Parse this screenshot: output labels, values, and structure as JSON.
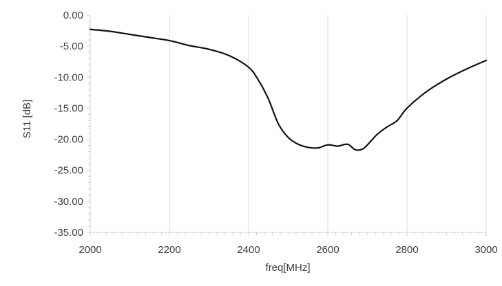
{
  "chart_data": {
    "type": "line",
    "title": "",
    "xlabel": "freq[MHz]",
    "ylabel": "S11 [dB]",
    "xlim": [
      2000,
      3000
    ],
    "ylim": [
      -35,
      0
    ],
    "x_ticks": [
      "2000",
      "2200",
      "2400",
      "2600",
      "2800",
      "3000"
    ],
    "y_ticks": [
      "0.00",
      "-5.00",
      "-10.00",
      "-15.00",
      "-20.00",
      "-25.00",
      "-30.00",
      "-35.00"
    ],
    "grid": "vertical gridlines",
    "legend": "none",
    "line_color": "#111111",
    "grid_color": "#d9d9d9",
    "series": [
      {
        "x": [
          2000,
          2050,
          2100,
          2150,
          2200,
          2250,
          2300,
          2350,
          2400,
          2425,
          2450,
          2475,
          2500,
          2525,
          2550,
          2575,
          2600,
          2625,
          2650,
          2670,
          2690,
          2710,
          2725,
          2750,
          2775,
          2800,
          2850,
          2900,
          2950,
          3000
        ],
        "y": [
          -2.3,
          -2.6,
          -3.1,
          -3.6,
          -4.1,
          -4.9,
          -5.5,
          -6.5,
          -8.4,
          -10.5,
          -13.5,
          -17.5,
          -19.7,
          -20.8,
          -21.3,
          -21.4,
          -20.9,
          -21.1,
          -20.8,
          -21.7,
          -21.5,
          -20.2,
          -19.2,
          -18.0,
          -17.0,
          -15.0,
          -12.3,
          -10.3,
          -8.7,
          -7.3
        ]
      }
    ]
  }
}
